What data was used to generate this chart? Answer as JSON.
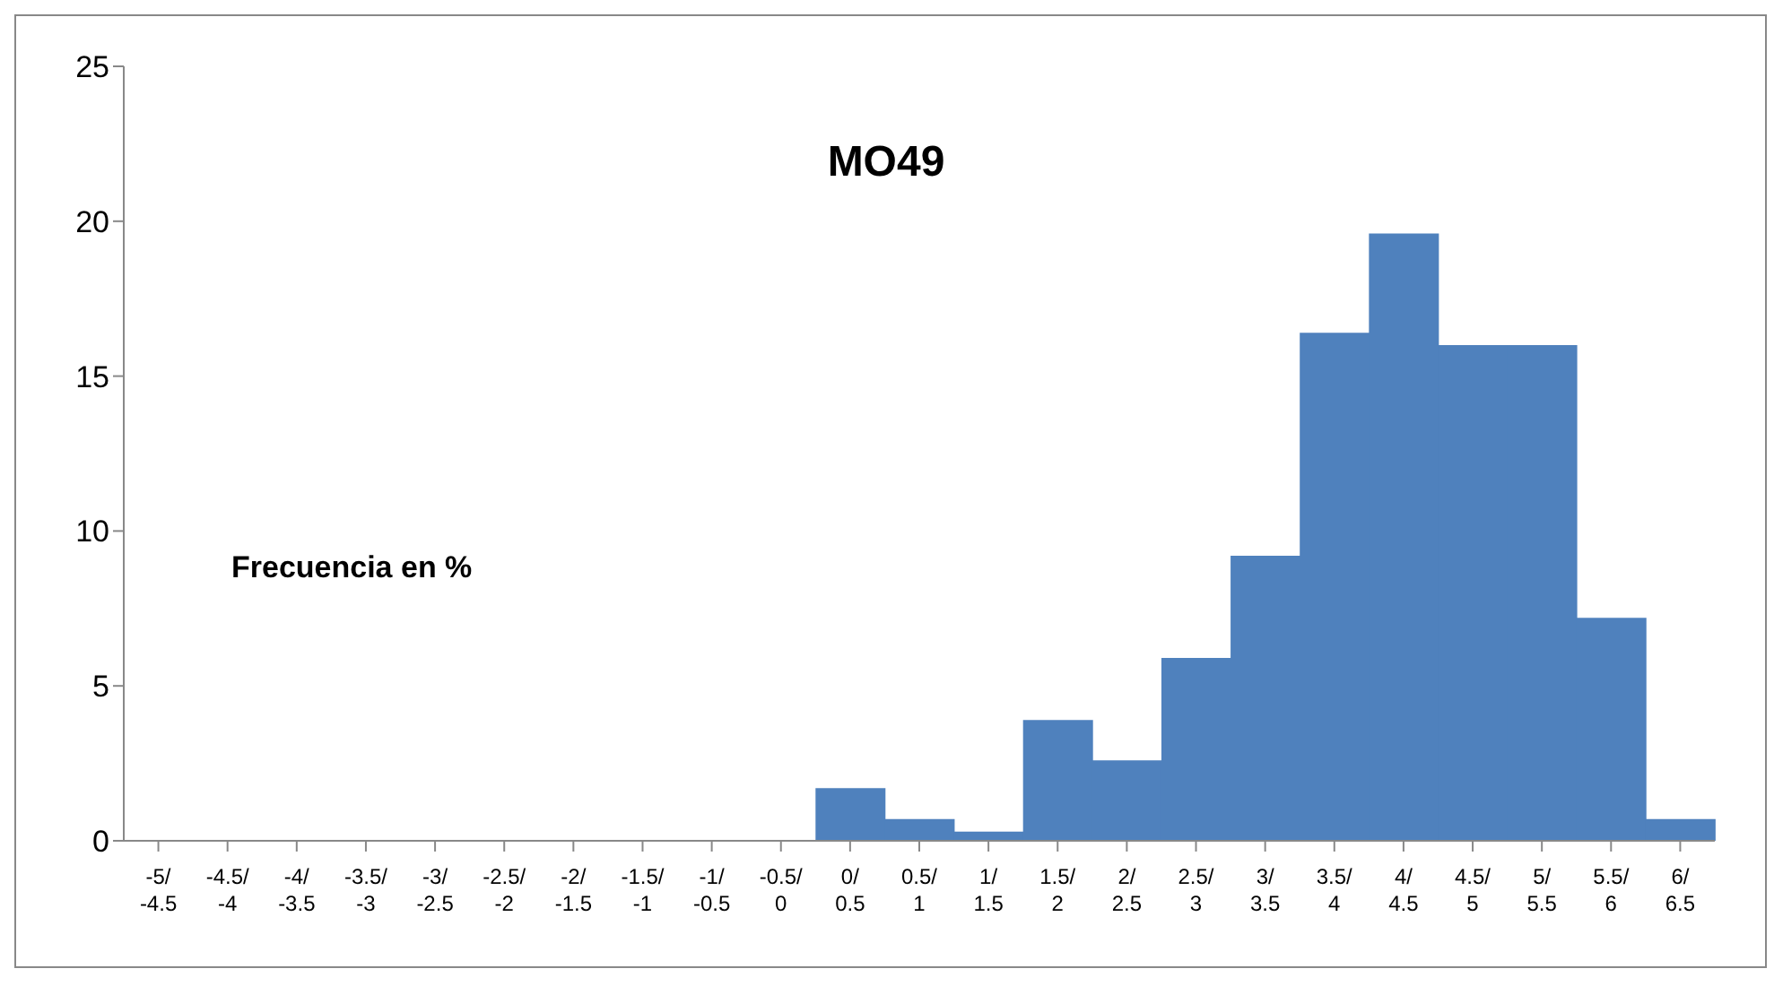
{
  "chart_data": {
    "type": "bar",
    "title": "MO49",
    "annotations": [
      "Frecuencia en %"
    ],
    "categories": [
      "-5/-4.5",
      "-4.5/-4",
      "-4/-3.5",
      "-3.5/-3",
      "-3/-2.5",
      "-2.5/-2",
      "-2/-1.5",
      "-1.5/-1",
      "-1/-0.5",
      "-0.5/0",
      "0/0.5",
      "0.5/1",
      "1/1.5",
      "1.5/2",
      "2/2.5",
      "2.5/3",
      "3/3.5",
      "3.5/4",
      "4/4.5",
      "4.5/5",
      "5/5.5",
      "5.5/6",
      "6/6.5"
    ],
    "values": [
      0,
      0,
      0,
      0,
      0,
      0,
      0,
      0,
      0,
      0,
      1.7,
      0.7,
      0.3,
      3.9,
      2.6,
      5.9,
      9.2,
      16.4,
      19.6,
      16,
      16,
      7.2,
      0.7
    ],
    "color": "#4f81bd",
    "ylim": [
      0,
      25
    ],
    "yticks": [
      0,
      5,
      10,
      15,
      20,
      25
    ],
    "grid": false,
    "legend": false
  }
}
